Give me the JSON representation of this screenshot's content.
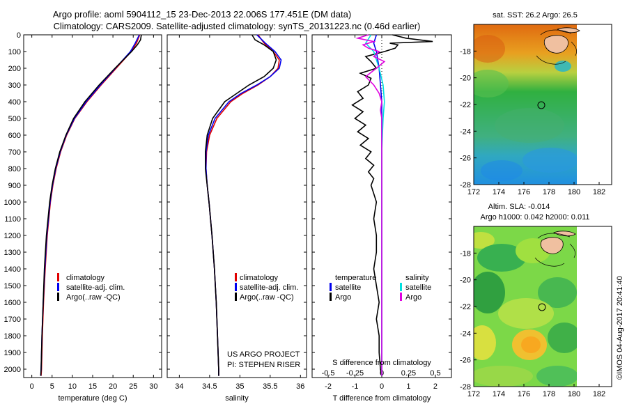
{
  "header": {
    "line1": "Argo profile: aoml 5904112_15 23-Dec-2013 22.006S 177.451E (DM data)",
    "line2": "Climatology: CARS2009. Satellite-adjusted climatology: synTS_20131223.nc (0.46d earlier)"
  },
  "credit": "©IMOS 04-Aug-2017 20:41:40",
  "project": {
    "line1": "US ARGO PROJECT",
    "line2": "PI: STEPHEN RISER"
  },
  "colors": {
    "climatology": "#e00000",
    "satellite": "#0000ee",
    "argo": "#000000",
    "sal_sat": "#00e0e0",
    "sal_argo": "#e000e0",
    "dots": "#666666"
  },
  "chart_data": [
    {
      "type": "line",
      "id": "temperature",
      "xlabel": "temperature (deg C)",
      "xlim": [
        -2,
        32
      ],
      "ylim": [
        2050,
        0
      ],
      "xticks": [
        0,
        5,
        10,
        15,
        20,
        25,
        30
      ],
      "yticks": [
        0,
        100,
        200,
        300,
        400,
        500,
        600,
        700,
        800,
        900,
        1000,
        1100,
        1200,
        1300,
        1400,
        1500,
        1600,
        1700,
        1800,
        1900,
        2000
      ],
      "legend": [
        "climatology",
        "satellite-adj. clim.",
        "Argo(..raw -QC)"
      ],
      "series": [
        {
          "name": "climatology",
          "color": "climatology",
          "depth": [
            0,
            50,
            100,
            200,
            300,
            400,
            500,
            600,
            700,
            800,
            900,
            1000,
            1200,
            1400,
            1600,
            1800,
            2000,
            2040
          ],
          "values": [
            26.6,
            25.8,
            24.5,
            20.8,
            17.1,
            13.6,
            10.6,
            8.6,
            7.1,
            6.0,
            5.2,
            4.6,
            3.8,
            3.3,
            2.9,
            2.6,
            2.4,
            2.3
          ]
        },
        {
          "name": "satellite-adj. clim.",
          "color": "satellite",
          "depth": [
            0,
            50,
            100,
            200,
            300,
            400,
            500,
            600,
            700,
            800,
            900,
            1000,
            1200,
            1400,
            1600,
            1800,
            2000,
            2040
          ],
          "values": [
            26.5,
            25.5,
            24.3,
            20.6,
            16.9,
            13.4,
            10.5,
            8.5,
            7.0,
            5.9,
            5.1,
            4.5,
            3.7,
            3.2,
            2.8,
            2.5,
            2.3,
            2.2
          ]
        },
        {
          "name": "Argo(..raw -QC)",
          "color": "argo",
          "depth": [
            0,
            30,
            60,
            100,
            200,
            300,
            400,
            500,
            600,
            700,
            800,
            900,
            1000,
            1200,
            1400,
            1600,
            1800,
            2000,
            2040
          ],
          "values": [
            27.0,
            26.8,
            26.0,
            24.6,
            20.5,
            16.6,
            13.1,
            10.3,
            8.4,
            6.9,
            5.8,
            5.0,
            4.4,
            3.6,
            3.1,
            2.8,
            2.5,
            2.3,
            2.2
          ]
        }
      ]
    },
    {
      "type": "line",
      "id": "salinity",
      "xlabel": "salinity",
      "xlim": [
        33.8,
        36.1
      ],
      "ylim": [
        2050,
        0
      ],
      "xticks": [
        34,
        34.5,
        35,
        35.5,
        36
      ],
      "legend": [
        "climatology",
        "satellite-adj. clim.",
        "Argo(..raw -QC)"
      ],
      "series": [
        {
          "name": "climatology",
          "color": "climatology",
          "depth": [
            0,
            50,
            100,
            150,
            200,
            250,
            300,
            350,
            400,
            500,
            600,
            700,
            800,
            900,
            1000,
            1200,
            1400,
            1600,
            1800,
            2000,
            2040
          ],
          "values": [
            35.3,
            35.4,
            35.55,
            35.65,
            35.63,
            35.5,
            35.3,
            35.05,
            34.85,
            34.62,
            34.5,
            34.45,
            34.44,
            34.46,
            34.49,
            34.54,
            34.58,
            34.61,
            34.63,
            34.65,
            34.65
          ]
        },
        {
          "name": "satellite-adj. clim.",
          "color": "satellite",
          "depth": [
            0,
            50,
            100,
            150,
            200,
            250,
            300,
            350,
            400,
            500,
            600,
            700,
            800,
            900,
            1000,
            1200,
            1400,
            1600,
            1800,
            2000,
            2040
          ],
          "values": [
            35.28,
            35.42,
            35.58,
            35.68,
            35.65,
            35.5,
            35.28,
            35.02,
            34.82,
            34.59,
            34.48,
            34.44,
            34.44,
            34.46,
            34.49,
            34.54,
            34.58,
            34.61,
            34.63,
            34.65,
            34.65
          ]
        },
        {
          "name": "Argo(..raw -QC)",
          "color": "argo",
          "depth": [
            0,
            30,
            60,
            100,
            150,
            200,
            250,
            300,
            350,
            400,
            500,
            600,
            700,
            800,
            900,
            1000,
            1200,
            1400,
            1600,
            1800,
            2000,
            2040
          ],
          "values": [
            35.2,
            35.25,
            35.4,
            35.55,
            35.6,
            35.55,
            35.4,
            35.15,
            34.95,
            34.75,
            34.55,
            34.46,
            34.43,
            34.43,
            34.46,
            34.49,
            34.54,
            34.58,
            34.61,
            34.63,
            34.65,
            34.65
          ]
        }
      ]
    },
    {
      "type": "line",
      "id": "difference",
      "xlabel": "T difference from climatology",
      "xlabel2": "S difference from climatology",
      "xlim": [
        -2.6,
        2.6
      ],
      "ylim": [
        2050,
        0
      ],
      "xticks": [
        -2,
        -1,
        0,
        1,
        2
      ],
      "xticks2": [
        "-0.5",
        "-0.25",
        "0",
        "0.25",
        "0.5"
      ],
      "legend_left": {
        "title": "temperature",
        "items": [
          "satellite",
          "Argo"
        ]
      },
      "legend_right": {
        "title": "salinity",
        "items": [
          "satellite",
          "Argo"
        ]
      },
      "series": [
        {
          "name": "temperature satellite",
          "color": "satellite",
          "depth": [
            0,
            50,
            100,
            200,
            300,
            400,
            500,
            700,
            1000,
            1500,
            2000,
            2040
          ],
          "values": [
            -0.2,
            -0.3,
            -0.2,
            -0.1,
            -0.05,
            0,
            0,
            0,
            0,
            0,
            0,
            0
          ]
        },
        {
          "name": "temperature Argo",
          "color": "argo",
          "depth": [
            0,
            20,
            40,
            50,
            60,
            80,
            100,
            130,
            160,
            200,
            230,
            260,
            300,
            340,
            380,
            420,
            460,
            500,
            540,
            580,
            620,
            660,
            700,
            740,
            780,
            820,
            860,
            900,
            950,
            1000,
            1100,
            1200,
            1300,
            1400,
            1500,
            1600,
            1700,
            1800,
            1900,
            2000,
            2040
          ],
          "values": [
            0.4,
            0.9,
            1.9,
            0.3,
            0.6,
            0.5,
            0.1,
            -0.6,
            -0.4,
            -0.2,
            -0.8,
            -0.4,
            -0.5,
            -0.9,
            -0.7,
            -1.1,
            -0.7,
            -1.0,
            -0.6,
            -0.9,
            -0.5,
            -0.8,
            -0.4,
            -0.6,
            -0.3,
            -0.5,
            -0.3,
            -0.4,
            -0.3,
            -0.2,
            -0.3,
            -0.2,
            -0.2,
            -0.3,
            -0.2,
            -0.1,
            -0.2,
            -0.1,
            -0.1,
            -0.05,
            0
          ]
        },
        {
          "name": "salinity satellite",
          "color": "sal_sat",
          "depth": [
            0,
            50,
            100,
            200,
            300,
            400,
            500,
            700,
            1000,
            1500,
            2000,
            2040
          ],
          "values": [
            -0.4,
            -0.6,
            -0.3,
            -0.1,
            0.05,
            0.1,
            0.05,
            0,
            0,
            0,
            0,
            0
          ]
        },
        {
          "name": "salinity Argo",
          "color": "sal_argo",
          "depth": [
            0,
            20,
            40,
            60,
            80,
            100,
            130,
            160,
            200,
            250,
            300,
            350,
            400,
            450,
            500,
            600,
            700,
            800,
            1000,
            1500,
            2000,
            2040
          ],
          "values": [
            -0.5,
            -0.9,
            -0.3,
            -0.7,
            -0.5,
            -0.1,
            -0.3,
            0.1,
            -0.2,
            -0.6,
            -0.3,
            -0.1,
            0,
            -0.05,
            0,
            0,
            0,
            0,
            0,
            0,
            0,
            0
          ]
        }
      ]
    },
    {
      "type": "heatmap",
      "id": "sst-map",
      "title": "sat. SST: 26.2 Argo: 26.5",
      "xlim": [
        172,
        183
      ],
      "ylim": [
        -28,
        -16
      ],
      "xticks": [
        172,
        174,
        176,
        178,
        180,
        182
      ],
      "yticks": [
        -28,
        -26,
        -24,
        -22,
        -20,
        -18
      ],
      "argo_position": {
        "lon": 177.451,
        "lat": -22.006
      }
    },
    {
      "type": "heatmap",
      "id": "sla-map",
      "title": "Altim. SLA: -0.014",
      "subtitle": "Argo h1000: 0.042 h2000: 0.011",
      "xlim": [
        172,
        183
      ],
      "ylim": [
        -28,
        -16
      ],
      "xticks": [
        172,
        174,
        176,
        178,
        180,
        182
      ],
      "yticks": [
        -28,
        -26,
        -24,
        -22,
        -20,
        -18
      ],
      "argo_position": {
        "lon": 177.451,
        "lat": -22.006
      }
    }
  ]
}
